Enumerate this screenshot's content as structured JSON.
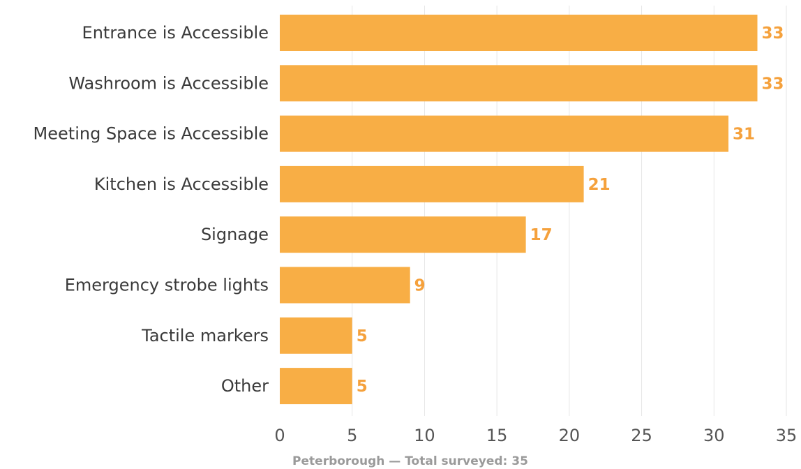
{
  "chart_data": {
    "type": "bar",
    "orientation": "horizontal",
    "categories": [
      "Entrance is Accessible",
      "Washroom is Accessible",
      "Meeting Space is Accessible",
      "Kitchen is Accessible",
      "Signage",
      "Emergency strobe lights",
      "Tactile markers",
      "Other"
    ],
    "values": [
      33,
      33,
      31,
      21,
      17,
      9,
      5,
      5
    ],
    "xlim": [
      0,
      35
    ],
    "xticks": [
      0,
      5,
      10,
      15,
      20,
      25,
      30,
      35
    ],
    "grid": "vertical",
    "legend": "none",
    "bar_color": "#F8AE45",
    "value_label_color": "#F5A13C",
    "footer": "Peterborough — Total surveyed: 35"
  }
}
